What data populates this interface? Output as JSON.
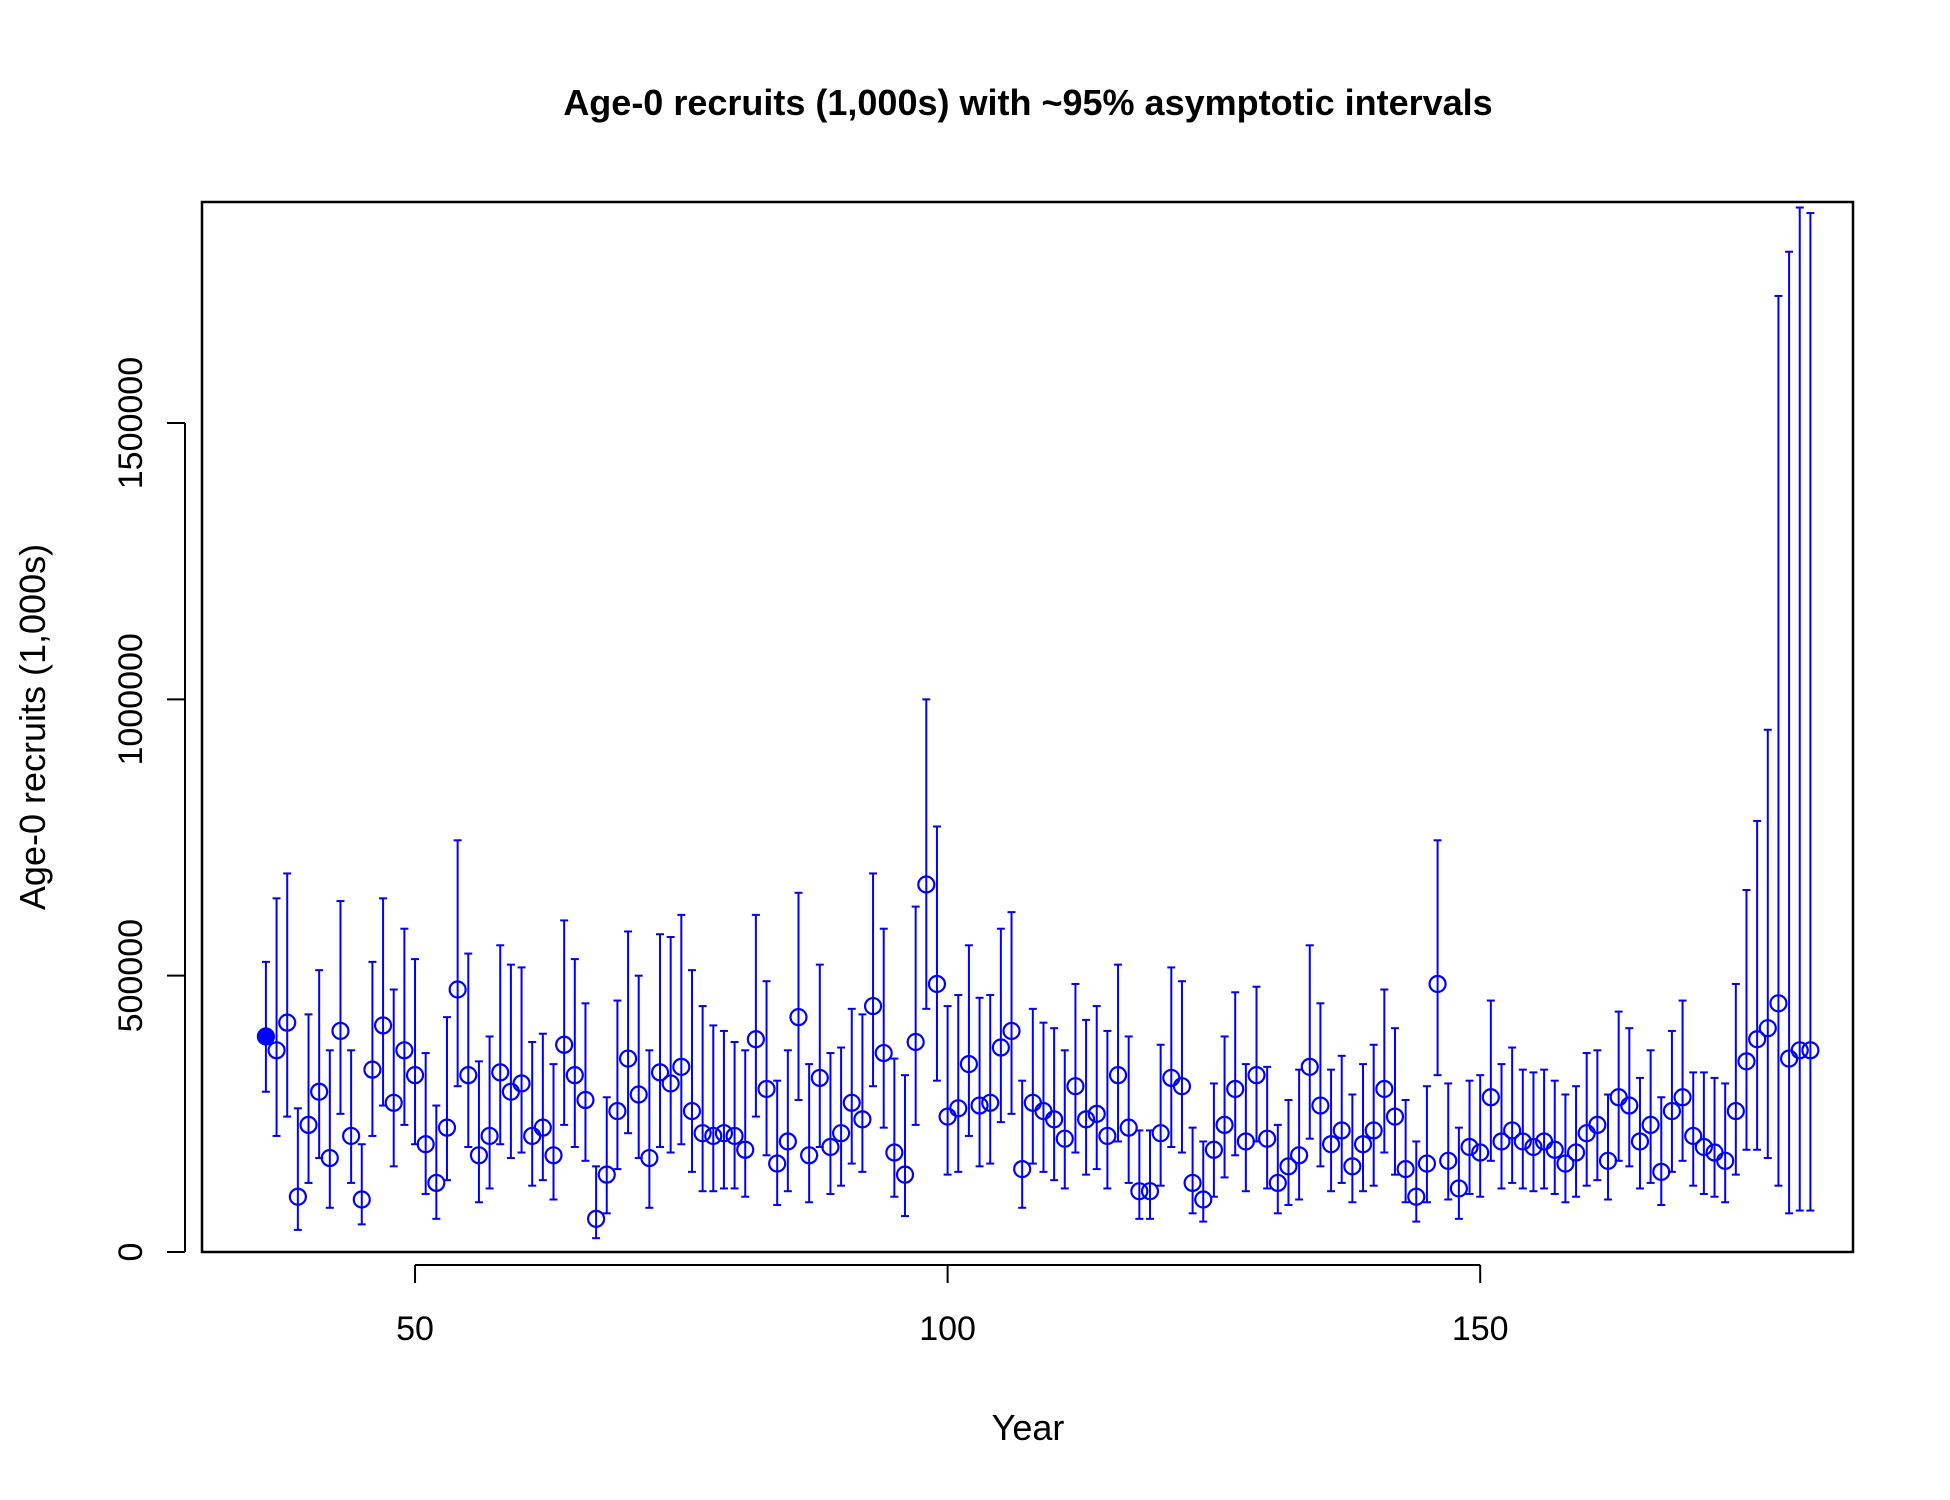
{
  "chart_data": {
    "type": "scatter",
    "title": "Age-0 recruits (1,000s) with ~95% asymptotic intervals",
    "xlabel": "Year",
    "ylabel": "Age-0 recruits (1,000s)",
    "xlim": [
      30,
      185
    ],
    "ylim": [
      0,
      1900000
    ],
    "xticks": [
      50,
      100,
      150
    ],
    "yticks": [
      0,
      500000,
      1000000,
      1500000
    ],
    "grid": false,
    "color": "#0000ff",
    "first_point_filled": true,
    "x": [
      36,
      37,
      38,
      39,
      40,
      41,
      42,
      43,
      44,
      45,
      46,
      47,
      48,
      49,
      50,
      51,
      52,
      53,
      54,
      55,
      56,
      57,
      58,
      59,
      60,
      61,
      62,
      63,
      64,
      65,
      66,
      67,
      68,
      69,
      70,
      71,
      72,
      73,
      74,
      75,
      76,
      77,
      78,
      79,
      80,
      81,
      82,
      83,
      84,
      85,
      86,
      87,
      88,
      89,
      90,
      91,
      92,
      93,
      94,
      95,
      96,
      97,
      98,
      99,
      100,
      101,
      102,
      103,
      104,
      105,
      106,
      107,
      108,
      109,
      110,
      111,
      112,
      113,
      114,
      115,
      116,
      117,
      118,
      119,
      120,
      121,
      122,
      123,
      124,
      125,
      126,
      127,
      128,
      129,
      130,
      131,
      132,
      133,
      134,
      135,
      136,
      137,
      138,
      139,
      140,
      141,
      142,
      143,
      144,
      145,
      146,
      147,
      148,
      149,
      150,
      151,
      152,
      153,
      154,
      155,
      156,
      157,
      158,
      159,
      160,
      161,
      162,
      163,
      164,
      165,
      166,
      167,
      168,
      169,
      170,
      171,
      172,
      173,
      174,
      175,
      176,
      177,
      178,
      179,
      180,
      181
    ],
    "values": [
      390000,
      365000,
      415000,
      100000,
      230000,
      290000,
      170000,
      400000,
      210000,
      95000,
      330000,
      410000,
      270000,
      365000,
      320000,
      195000,
      125000,
      225000,
      475000,
      320000,
      175000,
      210000,
      325000,
      290000,
      305000,
      210000,
      225000,
      175000,
      375000,
      320000,
      275000,
      60000,
      140000,
      255000,
      350000,
      285000,
      170000,
      325000,
      305000,
      335000,
      255000,
      215000,
      210000,
      215000,
      210000,
      185000,
      385000,
      295000,
      160000,
      200000,
      425000,
      175000,
      315000,
      190000,
      215000,
      270000,
      240000,
      445000,
      360000,
      180000,
      140000,
      380000,
      665000,
      485000,
      245000,
      260000,
      340000,
      265000,
      270000,
      370000,
      400000,
      150000,
      270000,
      255000,
      240000,
      205000,
      300000,
      240000,
      250000,
      210000,
      320000,
      225000,
      110000,
      110000,
      215000,
      315000,
      300000,
      125000,
      95000,
      185000,
      230000,
      295000,
      200000,
      320000,
      205000,
      125000,
      155000,
      175000,
      335000,
      265000,
      195000,
      220000,
      155000,
      195000,
      220000,
      295000,
      245000,
      150000,
      100000,
      160000,
      485000,
      165000,
      115000,
      190000,
      180000,
      280000,
      200000,
      220000,
      200000,
      190000,
      200000,
      185000,
      160000,
      180000,
      215000,
      230000,
      165000,
      280000,
      265000,
      200000,
      230000,
      145000,
      255000,
      280000,
      210000,
      190000,
      180000,
      165000,
      255000,
      345000,
      385000,
      405000,
      450000,
      350000,
      365000,
      365000
    ],
    "lower": [
      290000,
      210000,
      245000,
      40000,
      125000,
      170000,
      80000,
      250000,
      125000,
      50000,
      210000,
      265000,
      155000,
      230000,
      195000,
      105000,
      60000,
      130000,
      300000,
      190000,
      90000,
      115000,
      195000,
      170000,
      180000,
      120000,
      130000,
      95000,
      230000,
      190000,
      165000,
      25000,
      70000,
      150000,
      215000,
      170000,
      80000,
      190000,
      180000,
      195000,
      145000,
      110000,
      110000,
      115000,
      115000,
      100000,
      245000,
      175000,
      85000,
      110000,
      275000,
      90000,
      190000,
      105000,
      120000,
      160000,
      145000,
      300000,
      225000,
      100000,
      65000,
      230000,
      440000,
      310000,
      140000,
      145000,
      210000,
      155000,
      160000,
      235000,
      250000,
      80000,
      160000,
      145000,
      130000,
      115000,
      180000,
      140000,
      150000,
      115000,
      200000,
      125000,
      60000,
      60000,
      120000,
      190000,
      180000,
      70000,
      55000,
      100000,
      135000,
      175000,
      110000,
      200000,
      115000,
      70000,
      85000,
      95000,
      205000,
      155000,
      110000,
      125000,
      90000,
      110000,
      120000,
      180000,
      140000,
      90000,
      55000,
      90000,
      320000,
      95000,
      60000,
      105000,
      100000,
      165000,
      115000,
      125000,
      115000,
      110000,
      115000,
      105000,
      90000,
      100000,
      120000,
      130000,
      95000,
      165000,
      155000,
      115000,
      125000,
      85000,
      145000,
      165000,
      120000,
      105000,
      100000,
      90000,
      140000,
      185000,
      185000,
      170000,
      120000,
      70000,
      75000,
      75000
    ],
    "upper": [
      525000,
      640000,
      685000,
      260000,
      430000,
      510000,
      365000,
      635000,
      365000,
      195000,
      525000,
      640000,
      475000,
      585000,
      530000,
      360000,
      265000,
      425000,
      745000,
      540000,
      345000,
      390000,
      555000,
      520000,
      515000,
      380000,
      395000,
      340000,
      600000,
      530000,
      450000,
      155000,
      280000,
      455000,
      580000,
      500000,
      365000,
      575000,
      570000,
      610000,
      510000,
      445000,
      410000,
      400000,
      380000,
      365000,
      610000,
      490000,
      310000,
      365000,
      650000,
      340000,
      520000,
      360000,
      370000,
      440000,
      430000,
      685000,
      585000,
      350000,
      320000,
      625000,
      1000000,
      770000,
      445000,
      465000,
      555000,
      460000,
      465000,
      585000,
      615000,
      310000,
      440000,
      415000,
      405000,
      365000,
      485000,
      420000,
      445000,
      400000,
      520000,
      390000,
      220000,
      220000,
      375000,
      515000,
      490000,
      225000,
      200000,
      305000,
      390000,
      470000,
      340000,
      480000,
      335000,
      230000,
      275000,
      330000,
      555000,
      450000,
      330000,
      355000,
      285000,
      340000,
      375000,
      475000,
      405000,
      275000,
      200000,
      300000,
      745000,
      305000,
      225000,
      310000,
      320000,
      455000,
      340000,
      370000,
      330000,
      325000,
      330000,
      310000,
      285000,
      300000,
      360000,
      365000,
      285000,
      435000,
      405000,
      315000,
      365000,
      280000,
      400000,
      455000,
      325000,
      325000,
      315000,
      305000,
      485000,
      655000,
      780000,
      945000,
      1730000,
      1810000,
      1890000,
      1880000
    ]
  }
}
